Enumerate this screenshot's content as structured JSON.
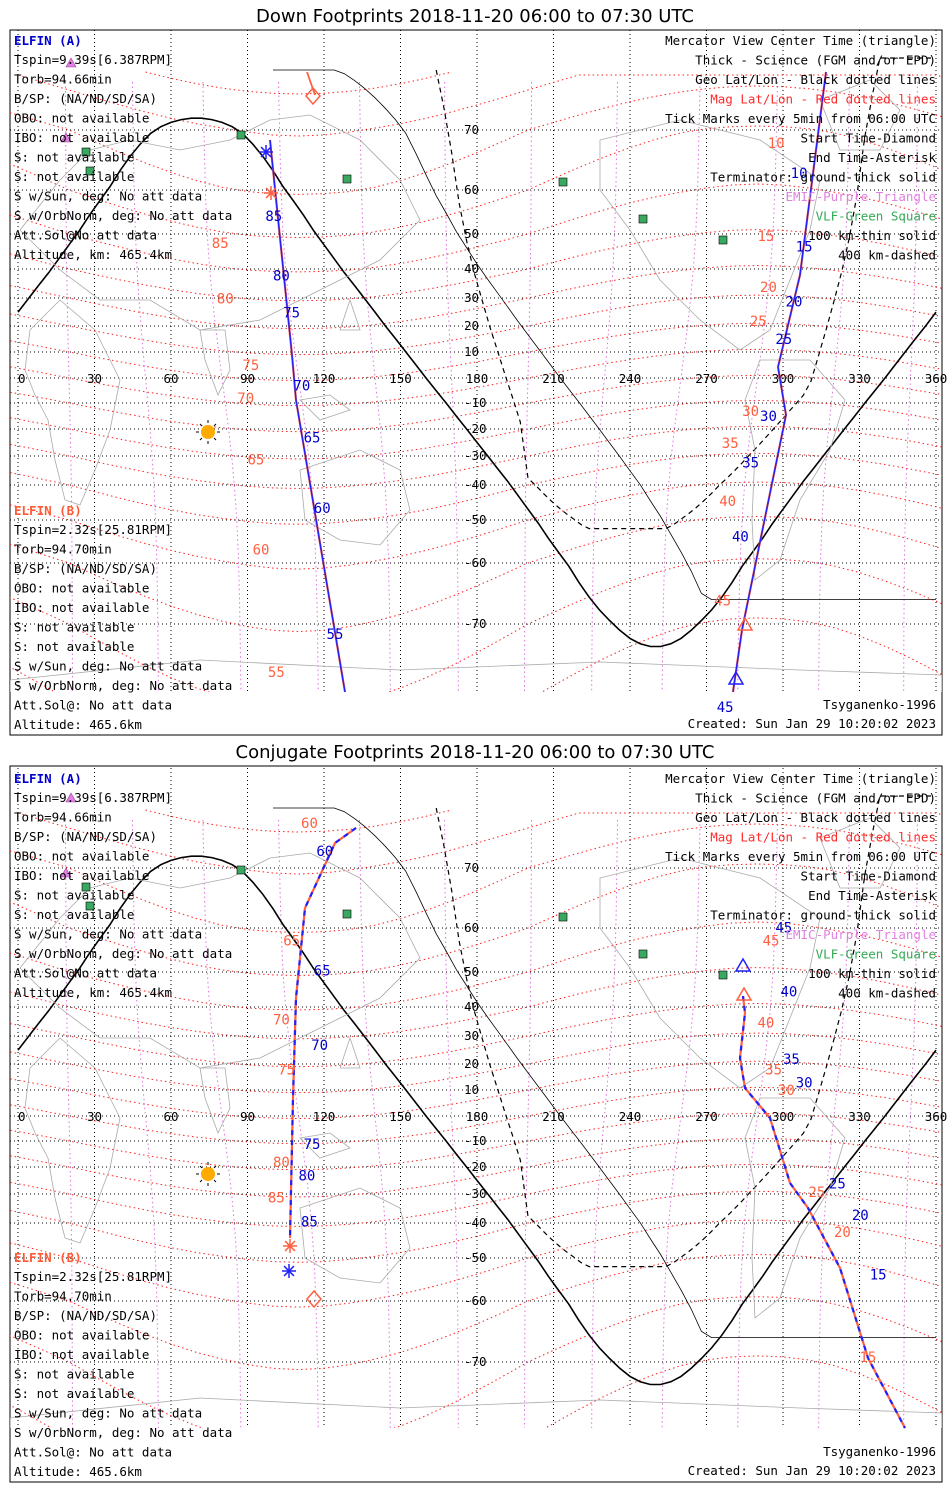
{
  "panels": [
    {
      "id": "down",
      "title": "Down Footprints 2018-11-20 06:00 to 07:30 UTC",
      "elfin_a": {
        "header": "ELFIN (A)",
        "lines": [
          "Tspin=9.39s[6.387RPM]",
          "Torb=94.66min",
          "B/SP: (NA/ND/SD/SA)",
          "OBO: not available",
          "IBO: not available",
          "S: not available",
          "S: not available",
          "S w/Sun, deg: No att data",
          "S w/OrbNorm, deg: No att data",
          "Att.Sol@No att data",
          "Altitude, km: 465.4km"
        ]
      },
      "elfin_b": {
        "header": "ELFIN (B)",
        "lines": [
          "Tspin=2.32s[25.81RPM]",
          "Torb=94.70min",
          "B/SP: (NA/ND/SD/SA)",
          "OBO: not available",
          "IBO: not available",
          "S: not available",
          "S: not available",
          "S w/Sun, deg: No att data",
          "S w/OrbNorm, deg: No att data",
          "Att.Sol@: No att data",
          "Altitude: 465.6km"
        ]
      },
      "legend": [
        {
          "text": "Mercator View Center Time (triangle)",
          "color": "#000000"
        },
        {
          "text": "Thick - Science (FGM and/or EPD)",
          "color": "#000000"
        },
        {
          "text": "Geo Lat/Lon - Black dotted lines",
          "color": "#000000"
        },
        {
          "text": "Mag Lat/Lon - Red dotted lines",
          "color": "#ff2a2a"
        },
        {
          "text": "Tick Marks every 5min from 06:00 UTC",
          "color": "#000000"
        },
        {
          "text": "Start Time-Diamond",
          "color": "#000000"
        },
        {
          "text": "End Time-Asterisk",
          "color": "#000000"
        },
        {
          "text": "Terminator: ground-thick solid",
          "color": "#000000"
        },
        {
          "text": "EMIC-Purple Triangle",
          "color": "#e080e0"
        },
        {
          "text": "VLF-Green Square",
          "color": "#33aa55"
        },
        {
          "text": "100 km-thin solid",
          "color": "#000000"
        },
        {
          "text": "400 km-dashed",
          "color": "#000000"
        }
      ],
      "model": "Tsyganenko-1996",
      "created": "Created: Sun Jan 29 10:20:02 2023",
      "track_labels": [
        {
          "t": "85",
          "c": "b",
          "lon": 97,
          "lat": 53
        },
        {
          "t": "80",
          "c": "b",
          "lon": 100,
          "lat": 36
        },
        {
          "t": "75",
          "c": "b",
          "lon": 104,
          "lat": 23
        },
        {
          "t": "70",
          "c": "b",
          "lon": 108,
          "lat": -5
        },
        {
          "t": "65",
          "c": "b",
          "lon": 112,
          "lat": -25
        },
        {
          "t": "60",
          "c": "b",
          "lon": 116,
          "lat": -48
        },
        {
          "t": "55",
          "c": "b",
          "lon": 121,
          "lat": -72
        },
        {
          "t": "85",
          "c": "r",
          "lon": 76,
          "lat": 46
        },
        {
          "t": "80",
          "c": "r",
          "lon": 78,
          "lat": 28
        },
        {
          "t": "75",
          "c": "r",
          "lon": 88,
          "lat": 3
        },
        {
          "t": "70",
          "c": "r",
          "lon": 86,
          "lat": -10
        },
        {
          "t": "65",
          "c": "r",
          "lon": 90,
          "lat": -33
        },
        {
          "t": "60",
          "c": "r",
          "lon": 92,
          "lat": -58
        },
        {
          "t": "55",
          "c": "r",
          "lon": 98,
          "lat": -77
        },
        {
          "t": "10",
          "c": "b",
          "lon": 303,
          "lat": 62
        },
        {
          "t": "15",
          "c": "b",
          "lon": 305,
          "lat": 45
        },
        {
          "t": "20",
          "c": "b",
          "lon": 301,
          "lat": 27
        },
        {
          "t": "25",
          "c": "b",
          "lon": 297,
          "lat": 13
        },
        {
          "t": "30",
          "c": "b",
          "lon": 291,
          "lat": -17
        },
        {
          "t": "35",
          "c": "b",
          "lon": 284,
          "lat": -34
        },
        {
          "t": "40",
          "c": "b",
          "lon": 280,
          "lat": -55
        },
        {
          "t": "45",
          "c": "b",
          "lon": 274,
          "lat": -82
        },
        {
          "t": "10",
          "c": "r",
          "lon": 294,
          "lat": 67
        },
        {
          "t": "15",
          "c": "r",
          "lon": 290,
          "lat": 48
        },
        {
          "t": "20",
          "c": "r",
          "lon": 291,
          "lat": 32
        },
        {
          "t": "25",
          "c": "r",
          "lon": 287,
          "lat": 20
        },
        {
          "t": "30",
          "c": "r",
          "lon": 284,
          "lat": -15
        },
        {
          "t": "35",
          "c": "r",
          "lon": 276,
          "lat": -27
        },
        {
          "t": "40",
          "c": "r",
          "lon": 275,
          "lat": -46
        },
        {
          "t": "45",
          "c": "r",
          "lon": 273,
          "lat": -67
        }
      ]
    },
    {
      "id": "conj",
      "title": "Conjugate Footprints 2018-11-20 06:00 to 07:30 UTC",
      "elfin_a": {
        "header": "ELFIN (A)",
        "lines": [
          "Tspin=9.39s[6.387RPM]",
          "Torb=94.66min",
          "B/SP: (NA/ND/SD/SA)",
          "OBO: not available",
          "IBO: not available",
          "S: not available",
          "S: not available",
          "S w/Sun, deg: No att data",
          "S w/OrbNorm, deg: No att data",
          "Att.Sol@No att data",
          "Altitude, km: 465.4km"
        ]
      },
      "elfin_b": {
        "header": "ELFIN (B)",
        "lines": [
          "Tspin=2.32s[25.81RPM]",
          "Torb=94.70min",
          "B/SP: (NA/ND/SD/SA)",
          "OBO: not available",
          "IBO: not available",
          "S: not available",
          "S: not available",
          "S w/Sun, deg: No att data",
          "S w/OrbNorm, deg: No att data",
          "Att.Sol@: No att data",
          "Altitude: 465.6km"
        ]
      },
      "legend": [
        {
          "text": "Mercator View Center Time (triangle)",
          "color": "#000000"
        },
        {
          "text": "Thick - Science (FGM and/or EPD)",
          "color": "#000000"
        },
        {
          "text": "Geo Lat/Lon - Black dotted lines",
          "color": "#000000"
        },
        {
          "text": "Mag Lat/Lon - Red dotted lines",
          "color": "#ff2a2a"
        },
        {
          "text": "Tick Marks every 5min from 06:00 UTC",
          "color": "#000000"
        },
        {
          "text": "Start Time-Diamond",
          "color": "#000000"
        },
        {
          "text": "End Time-Asterisk",
          "color": "#000000"
        },
        {
          "text": "Terminator: ground-thick solid",
          "color": "#000000"
        },
        {
          "text": "EMIC-Purple Triangle",
          "color": "#e080e0"
        },
        {
          "text": "VLF-Green Square",
          "color": "#33aa55"
        },
        {
          "text": "100 km-thin solid",
          "color": "#000000"
        },
        {
          "text": "400 km-dashed",
          "color": "#000000"
        }
      ],
      "model": "Tsyganenko-1996",
      "created": "Created: Sun Jan 29 10:20:02 2023",
      "track_labels": [
        {
          "t": "60",
          "c": "b",
          "lon": 117,
          "lat": 73
        },
        {
          "t": "65",
          "c": "b",
          "lon": 116,
          "lat": 49
        },
        {
          "t": "70",
          "c": "b",
          "lon": 115,
          "lat": 25
        },
        {
          "t": "75",
          "c": "b",
          "lon": 112,
          "lat": -13
        },
        {
          "t": "80",
          "c": "b",
          "lon": 110,
          "lat": -25
        },
        {
          "t": "85",
          "c": "b",
          "lon": 111,
          "lat": -41
        },
        {
          "t": "60",
          "c": "r",
          "lon": 111,
          "lat": 80
        },
        {
          "t": "65",
          "c": "r",
          "lon": 104,
          "lat": 56
        },
        {
          "t": "70",
          "c": "r",
          "lon": 100,
          "lat": 34
        },
        {
          "t": "75",
          "c": "r",
          "lon": 102,
          "lat": 16
        },
        {
          "t": "80",
          "c": "r",
          "lon": 100,
          "lat": -20
        },
        {
          "t": "85",
          "c": "r",
          "lon": 98,
          "lat": -33
        },
        {
          "t": "45",
          "c": "b",
          "lon": 297,
          "lat": 59
        },
        {
          "t": "40",
          "c": "b",
          "lon": 299,
          "lat": 43
        },
        {
          "t": "35",
          "c": "b",
          "lon": 300,
          "lat": 20
        },
        {
          "t": "30",
          "c": "b",
          "lon": 305,
          "lat": 11
        },
        {
          "t": "25",
          "c": "b",
          "lon": 318,
          "lat": -28
        },
        {
          "t": "20",
          "c": "b",
          "lon": 327,
          "lat": -39
        },
        {
          "t": "15",
          "c": "b",
          "lon": 334,
          "lat": -55
        },
        {
          "t": "45",
          "c": "r",
          "lon": 292,
          "lat": 56
        },
        {
          "t": "40",
          "c": "r",
          "lon": 290,
          "lat": 33
        },
        {
          "t": "35",
          "c": "r",
          "lon": 293,
          "lat": 16
        },
        {
          "t": "30",
          "c": "r",
          "lon": 298,
          "lat": 8
        },
        {
          "t": "25",
          "c": "r",
          "lon": 310,
          "lat": -31
        },
        {
          "t": "20",
          "c": "r",
          "lon": 320,
          "lat": -44
        },
        {
          "t": "15",
          "c": "r",
          "lon": 330,
          "lat": -70
        }
      ]
    }
  ]
}
